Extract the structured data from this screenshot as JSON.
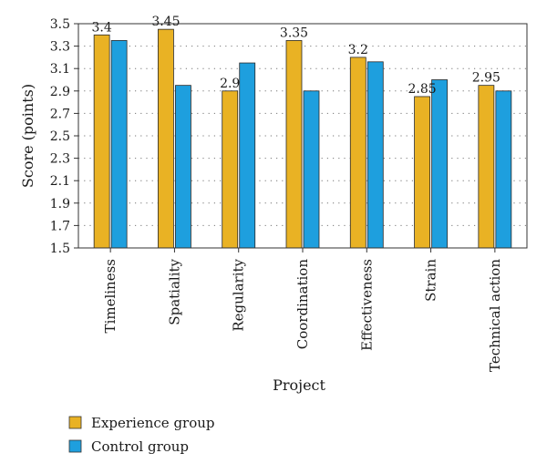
{
  "chart_data": {
    "type": "bar",
    "xlabel": "Project",
    "ylabel": "Score (points)",
    "ylim": [
      1.5,
      3.5
    ],
    "yticks": [
      "1.5",
      "1.7",
      "1.9",
      "2.1",
      "2.3",
      "2.5",
      "2.7",
      "2.9",
      "3.1",
      "3.3",
      "3.5"
    ],
    "grid": "dotted horizontal",
    "legend_position": "bottom-left",
    "categories": [
      "Timeliness",
      "Spatiality",
      "Regularity",
      "Coordination",
      "Effectiveness",
      "Strain",
      "Technical action"
    ],
    "series": [
      {
        "name": "Experience group",
        "color": "#E9B224",
        "values": [
          3.4,
          3.45,
          2.9,
          3.35,
          3.2,
          2.85,
          2.95
        ],
        "data_labels": [
          "3.4",
          "3.45",
          "2.9",
          "3.35",
          "3.2",
          "2.85",
          "2.95"
        ]
      },
      {
        "name": "Control group",
        "color": "#1E9FDE",
        "values": [
          3.35,
          2.95,
          3.15,
          2.9,
          3.16,
          3.0,
          2.9
        ]
      }
    ]
  }
}
